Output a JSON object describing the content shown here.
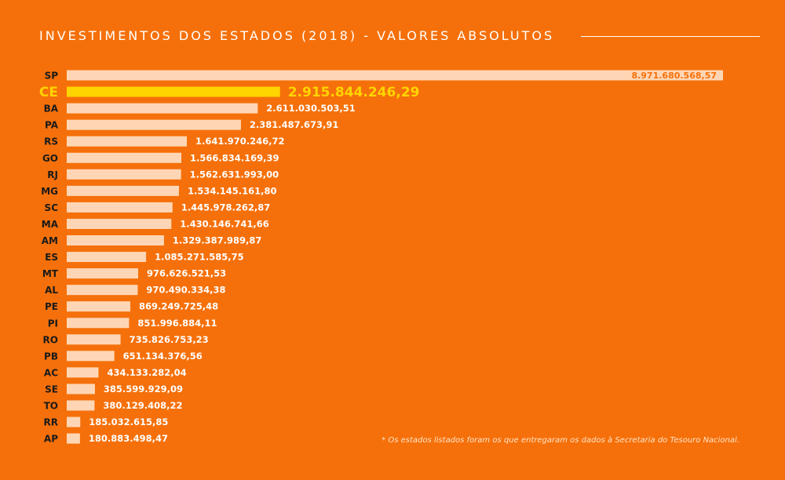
{
  "title": "INVESTIMENTOS DOS ESTADOS (2018) - VALORES ABSOLUTOS",
  "footnote": "* Os estados listados foram os que entregaram os dados à Secretaria do Tesouro Nacional.",
  "colors": {
    "background": "#F5700A",
    "bar": "#FFD6B5",
    "highlight": "#FFD400",
    "label": "#1A1A1A",
    "value": "#FFFFFF",
    "value_inside": "#F5700A"
  },
  "chart_data": {
    "type": "bar",
    "orientation": "horizontal",
    "title": "INVESTIMENTOS DOS ESTADOS (2018) - VALORES ABSOLUTOS",
    "highlight": "CE",
    "categories": [
      "SP",
      "CE",
      "BA",
      "PA",
      "RS",
      "GO",
      "RJ",
      "MG",
      "SC",
      "MA",
      "AM",
      "ES",
      "MT",
      "AL",
      "PE",
      "PI",
      "RO",
      "PB",
      "AC",
      "SE",
      "TO",
      "RR",
      "AP"
    ],
    "values": [
      8971680568.57,
      2915844246.29,
      2611030503.51,
      2381487673.91,
      1641970246.72,
      1566834169.39,
      1562631993.0,
      1534145161.8,
      1445978262.87,
      1430146741.66,
      1329387989.87,
      1085271585.75,
      976626521.53,
      970490334.38,
      869249725.48,
      851996884.11,
      735826753.23,
      651134376.56,
      434133282.04,
      385599929.09,
      380129408.22,
      185032615.85,
      180883498.47
    ],
    "value_labels": [
      "8.971.680.568,57",
      "2.915.844.246,29",
      "2.611.030.503,51",
      "2.381.487.673,91",
      "1.641.970.246,72",
      "1.566.834.169,39",
      "1.562.631.993,00",
      "1.534.145.161,80",
      "1.445.978.262,87",
      "1.430.146.741,66",
      "1.329.387.989,87",
      "1.085.271.585,75",
      "976.626.521,53",
      "970.490.334,38",
      "869.249.725,48",
      "851.996.884,11",
      "735.826.753,23",
      "651.134.376,56",
      "434.133.282,04",
      "385.599.929,09",
      "380.129.408,22",
      "185.032.615,85",
      "180.883.498,47"
    ],
    "xlim": [
      0,
      8971680568.57
    ],
    "grid": false,
    "legend": "none"
  }
}
